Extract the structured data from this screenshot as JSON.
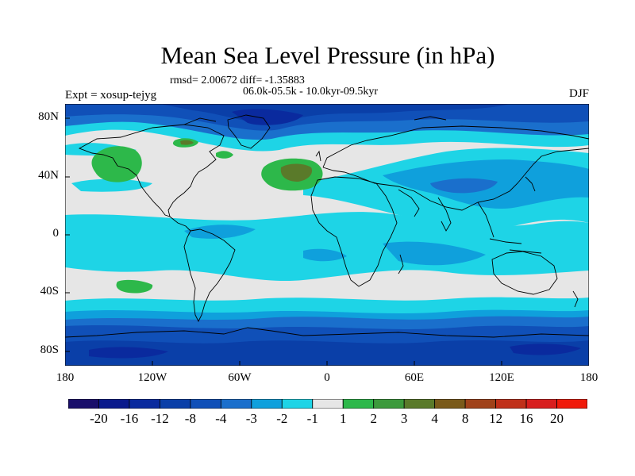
{
  "title": "Mean Sea Level Pressure (in hPa)",
  "stats_text": "rmsd= 2.00672 diff= -1.35883",
  "period_text": "06.0k-05.5k - 10.0kyr-09.5kyr",
  "expt_text": "Expt = xosup-tejyg",
  "season": "DJF",
  "map_data": {
    "type": "filled-contour-map",
    "variable": "Mean Sea Level Pressure anomaly",
    "units": "hPa",
    "lon_range": [
      -180,
      180
    ],
    "lat_range": [
      -90,
      90
    ],
    "x_ticks": [
      "180",
      "120W",
      "60W",
      "0",
      "60E",
      "120E",
      "180"
    ],
    "x_tick_values": [
      -180,
      -120,
      -60,
      0,
      60,
      120,
      180
    ],
    "y_ticks": [
      "80N",
      "40N",
      "0",
      "40S",
      "80S"
    ],
    "y_tick_values": [
      80,
      40,
      0,
      -40,
      -80
    ],
    "colorbar_labels": [
      "-20",
      "-16",
      "-12",
      "-8",
      "-4",
      "-3",
      "-2",
      "-1",
      "1",
      "2",
      "3",
      "4",
      "8",
      "12",
      "16",
      "20"
    ],
    "colorbar_colors": [
      "#1a0f6b",
      "#0a1a8c",
      "#0a2a9e",
      "#0a3fa8",
      "#1050b8",
      "#1a6fcc",
      "#0fa0dc",
      "#1ed4e6",
      "#e6e6e6",
      "#2db84a",
      "#3c9a3c",
      "#5a7a2a",
      "#7a5a1a",
      "#a0421a",
      "#c0301a",
      "#d81e1e",
      "#f01a0a"
    ],
    "features": [
      {
        "label": "positive anomaly, North Pacific",
        "lon": -145,
        "lat": 45,
        "level": "2"
      },
      {
        "label": "positive anomaly, North Atlantic",
        "lon": -22,
        "lat": 37,
        "level": "3"
      },
      {
        "label": "positive anomaly, South Pacific",
        "lon": -140,
        "lat": -33,
        "level": "2"
      },
      {
        "label": "strong negative anomaly, Southern Ocean band",
        "lon": 0,
        "lat": -55,
        "level": "-4"
      },
      {
        "label": "negative anomaly, Arctic",
        "lon": 0,
        "lat": 80,
        "level": "-4"
      },
      {
        "label": "weak negative anomaly, tropical oceans",
        "lon": 60,
        "lat": 5,
        "level": "-2"
      }
    ]
  }
}
